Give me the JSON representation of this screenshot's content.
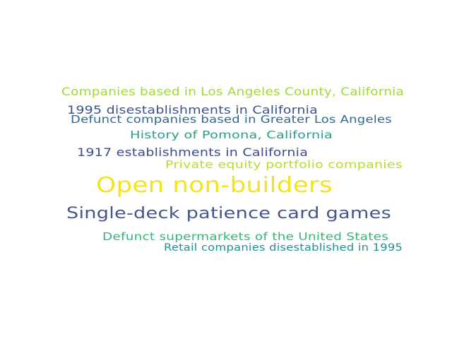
{
  "words": [
    {
      "text": "Companies based in Los Angeles County, California",
      "color": "#a0da39"
    },
    {
      "text": "1995 disestablishments in California",
      "color": "#3b528b"
    },
    {
      "text": "Defunct companies based in Greater Los Angeles",
      "color": "#30698e"
    },
    {
      "text": "History of Pomona, California",
      "color": "#2a9d8c"
    },
    {
      "text": "1917 establishments in California",
      "color": "#3e4c8a"
    },
    {
      "text": "Private equity portfolio companies",
      "color": "#b5de2b"
    },
    {
      "text": "Open non-builders",
      "color": "#f2e51d"
    },
    {
      "text": "Single-deck patience card games",
      "color": "#46568b"
    },
    {
      "text": "Defunct supermarkets of the United States",
      "color": "#35b779"
    },
    {
      "text": "Retail companies disestablished in 1995",
      "color": "#21918c"
    }
  ]
}
